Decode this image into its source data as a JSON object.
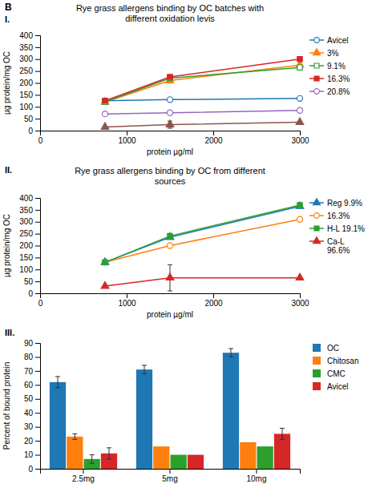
{
  "chart_data": [
    {
      "type": "line",
      "title": "Rye grass allergens binding by OC batches with\ndifferent oxidation levis",
      "xlabel": "protein µg/ml",
      "ylabel": "µg protein/mg OC",
      "annotations": [
        "B",
        "I."
      ],
      "x": [
        750,
        1500,
        3000
      ],
      "xlim": [
        0,
        3000
      ],
      "ylim": [
        0,
        400
      ],
      "xticks": [
        0,
        1000,
        2000,
        3000
      ],
      "yticks": [
        0,
        50,
        100,
        150,
        200,
        250,
        300,
        350,
        400
      ],
      "legend": "right",
      "series": [
        {
          "name": "Avicel",
          "marker": "circle-open",
          "values": [
            125,
            130,
            135
          ]
        },
        {
          "name": "3%",
          "marker": "triangle",
          "values": [
            120,
            210,
            275
          ]
        },
        {
          "name": "9.1%",
          "marker": "square-open",
          "values": [
            120,
            220,
            265
          ]
        },
        {
          "name": "16.3%",
          "marker": "square",
          "values": [
            125,
            225,
            300
          ]
        },
        {
          "name": "20.8%",
          "marker": "circle-open",
          "values": [
            70,
            75,
            85
          ]
        },
        {
          "marker": "triangle",
          "values": [
            15,
            25,
            35
          ],
          "errors": [
            null,
            15,
            null
          ]
        }
      ]
    },
    {
      "type": "line",
      "title": "Rye grass allergens binding by OC from different\nsources",
      "xlabel": "protein µg/ml",
      "ylabel": "µg protein/mg OC",
      "annotations": [
        "II."
      ],
      "x": [
        750,
        1500,
        3000
      ],
      "xlim": [
        0,
        3000
      ],
      "ylim": [
        0,
        400
      ],
      "xticks": [
        0,
        1000,
        2000,
        3000
      ],
      "yticks": [
        0,
        50,
        100,
        150,
        200,
        250,
        300,
        350,
        400
      ],
      "legend": "right",
      "series": [
        {
          "name": "Reg 9.9%",
          "marker": "triangle",
          "values": [
            130,
            235,
            365
          ]
        },
        {
          "name": "16.3%",
          "marker": "circle-open",
          "values": [
            130,
            200,
            310
          ]
        },
        {
          "name": "H-L 19.1%",
          "marker": "square",
          "values": [
            130,
            240,
            370
          ]
        },
        {
          "name": "Ca-L\n96.6%",
          "marker": "triangle",
          "values": [
            30,
            65,
            65
          ],
          "errors": [
            null,
            55,
            null
          ]
        }
      ]
    },
    {
      "type": "bar",
      "ylabel": "Percent of bound protein",
      "annotations": [
        "III."
      ],
      "categories": [
        "2.5mg",
        "5mg",
        "10mg"
      ],
      "ylim": [
        0,
        90
      ],
      "yticks": [
        0,
        10,
        20,
        30,
        40,
        50,
        60,
        70,
        80,
        90
      ],
      "legend": "right",
      "series": [
        {
          "name": "OC",
          "values": [
            62,
            71,
            83
          ],
          "errors": [
            4,
            3,
            3
          ]
        },
        {
          "name": "Chitosan",
          "values": [
            23,
            16,
            19
          ],
          "errors": [
            2,
            null,
            null
          ]
        },
        {
          "name": "CMC",
          "values": [
            7,
            10,
            16
          ],
          "errors": [
            3,
            null,
            null
          ]
        },
        {
          "name": "Avicel",
          "values": [
            11,
            10,
            25
          ],
          "errors": [
            4,
            null,
            4
          ]
        }
      ]
    }
  ]
}
